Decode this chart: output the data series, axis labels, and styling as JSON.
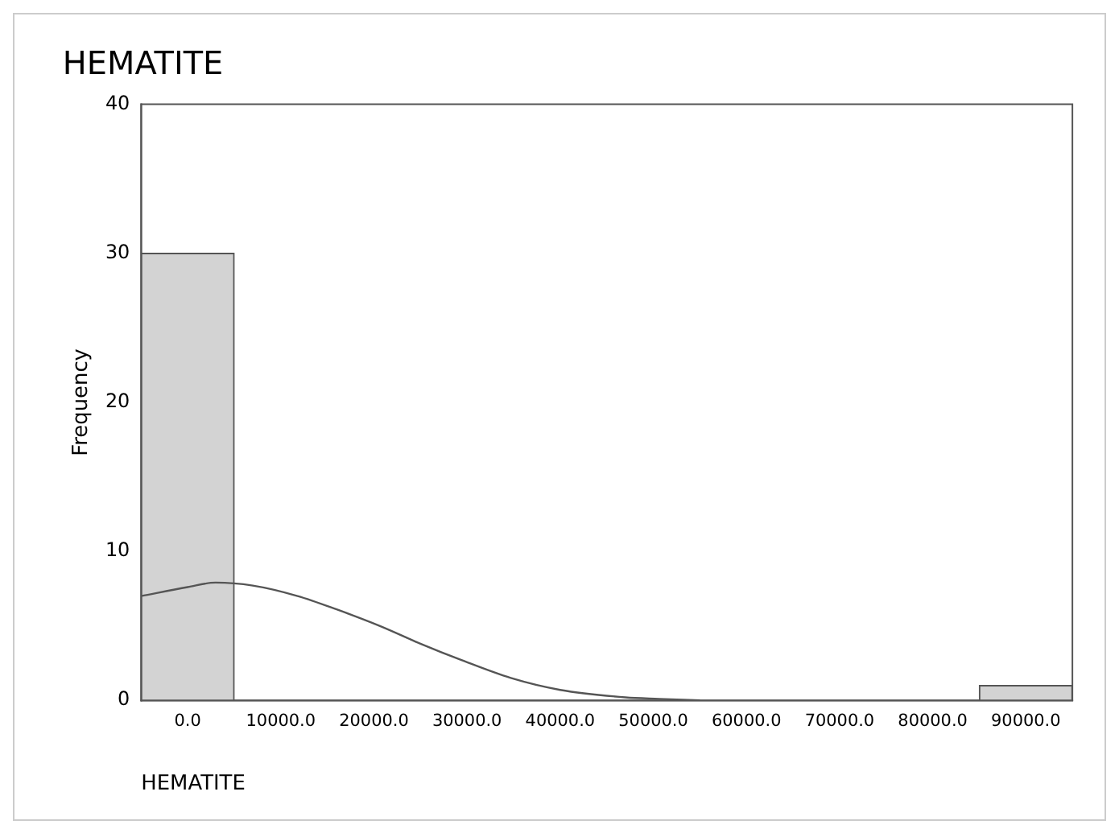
{
  "chart_data": {
    "type": "histogram",
    "title": "HEMATITE",
    "xlabel": "HEMATITE",
    "ylabel": "Frequency",
    "bins": [
      -5000,
      5000,
      15000,
      25000,
      35000,
      45000,
      55000,
      65000,
      75000,
      85000,
      95000
    ],
    "values": [
      30,
      0,
      0,
      0,
      0,
      0,
      0,
      0,
      0,
      1
    ],
    "color": "#d3d3d3",
    "series": [
      {
        "type": "line",
        "color": "#555555",
        "marker": "none",
        "x": [
          -5000,
          0,
          3000,
          7000,
          11800,
          16000,
          20600,
          25000,
          29400,
          34700,
          40000,
          47000,
          50600,
          55000
        ],
        "values": [
          7.0,
          7.6,
          7.9,
          7.7,
          7.0,
          6.1,
          5.0,
          3.8,
          2.7,
          1.5,
          0.7,
          0.2,
          0.1,
          0
        ]
      }
    ],
    "xlim": [
      -5000,
      95000
    ],
    "xticks": [
      {
        "value": 0,
        "label": "0.0"
      },
      {
        "value": 10000,
        "label": "10000.0"
      },
      {
        "value": 20000,
        "label": "20000.0"
      },
      {
        "value": 30000,
        "label": "30000.0"
      },
      {
        "value": 40000,
        "label": "40000.0"
      },
      {
        "value": 50000,
        "label": "50000.0"
      },
      {
        "value": 60000,
        "label": "60000.0"
      },
      {
        "value": 70000,
        "label": "70000.0"
      },
      {
        "value": 80000,
        "label": "80000.0"
      },
      {
        "value": 90000,
        "label": "90000.0"
      }
    ],
    "ylim": [
      0,
      40
    ],
    "yticks": [
      0,
      10,
      20,
      30,
      40
    ],
    "grid": false,
    "legend": false
  }
}
